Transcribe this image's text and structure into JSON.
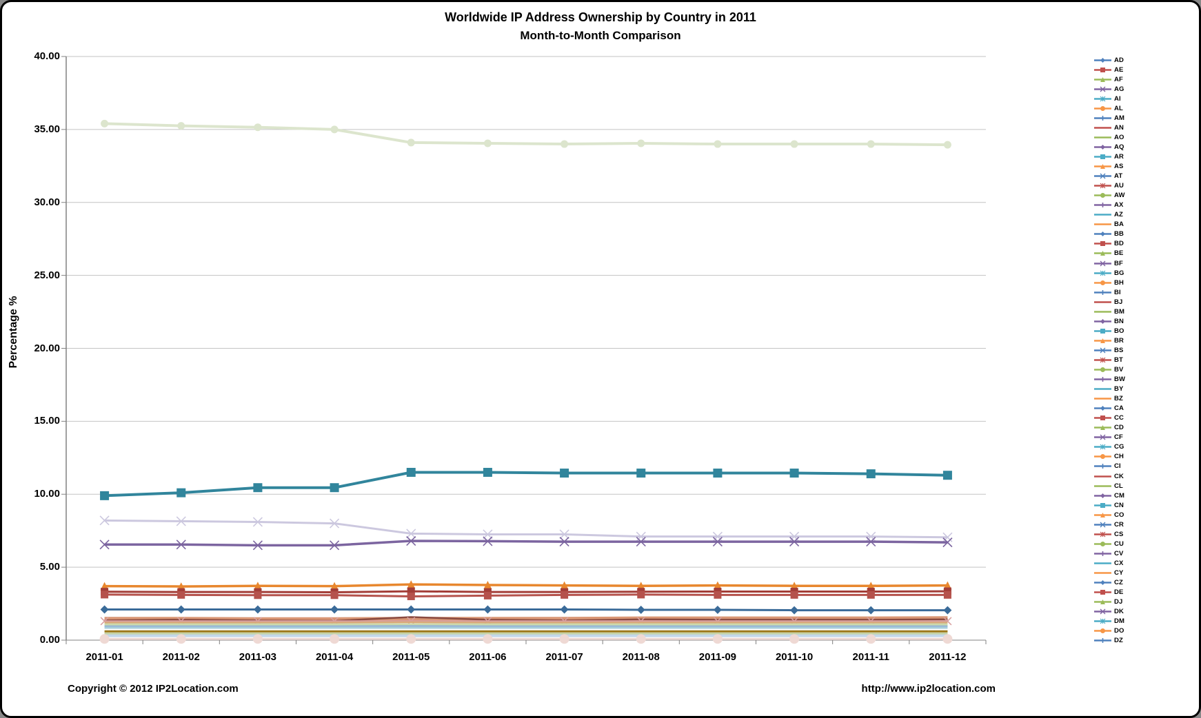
{
  "footer": {
    "copyright": "Copyright © 2012 IP2Location.com",
    "url": "http://www.ip2location.com"
  },
  "chart_data": {
    "type": "line",
    "title": "Worldwide IP Address Ownership by Country in 2011",
    "subtitle": "Month-to-Month Comparison",
    "xlabel": "",
    "ylabel": "Percentage %",
    "ylim": [
      0,
      40
    ],
    "ytick_step": 5,
    "grid": true,
    "legend_position": "right",
    "x": [
      "2011-01",
      "2011-02",
      "2011-03",
      "2011-04",
      "2011-05",
      "2011-06",
      "2011-07",
      "2011-08",
      "2011-09",
      "2011-10",
      "2011-11",
      "2011-12"
    ],
    "yticks": [
      "0.00",
      "5.00",
      "10.00",
      "15.00",
      "20.00",
      "25.00",
      "30.00",
      "35.00",
      "40.00"
    ],
    "style": {
      "grid_color": "#C3C3C3",
      "axis_color": "#808080",
      "background": "#FFFFFF"
    },
    "legend_labels": [
      "AD",
      "AE",
      "AF",
      "AG",
      "AI",
      "AL",
      "AM",
      "AN",
      "AO",
      "AQ",
      "AR",
      "AS",
      "AT",
      "AU",
      "AW",
      "AX",
      "AZ",
      "BA",
      "BB",
      "BD",
      "BE",
      "BF",
      "BG",
      "BH",
      "BI",
      "BJ",
      "BM",
      "BN",
      "BO",
      "BR",
      "BS",
      "BT",
      "BV",
      "BW",
      "BY",
      "BZ",
      "CA",
      "CC",
      "CD",
      "CF",
      "CG",
      "CH",
      "CI",
      "CK",
      "CL",
      "CM",
      "CN",
      "CO",
      "CR",
      "CS",
      "CU",
      "CV",
      "CX",
      "CY",
      "CZ",
      "DE",
      "DJ",
      "DK",
      "DM",
      "DO",
      "DZ"
    ],
    "legend_color_cycle": [
      "#4F81BD",
      "#C0504D",
      "#9BBB59",
      "#8064A2",
      "#4BACC6",
      "#F79646"
    ],
    "legend_marker_cycle": [
      "diamond",
      "square",
      "triangle",
      "x",
      "asterisk",
      "circle",
      "plus",
      "line",
      "line"
    ],
    "series": [
      {
        "name": "unlabeled-top-pale-green",
        "legend_label_visible": false,
        "color": "#DCE5CD",
        "marker": "circle",
        "marker_size": 11,
        "width": 4,
        "values": [
          35.4,
          35.25,
          35.15,
          35.0,
          34.1,
          34.05,
          34.0,
          34.05,
          34.0,
          34.0,
          34.0,
          33.95
        ]
      },
      {
        "name": "CN",
        "legend_label_visible": true,
        "color": "#31859C",
        "marker": "square",
        "marker_size": 13,
        "width": 4,
        "values": [
          9.9,
          10.1,
          10.45,
          10.45,
          11.5,
          11.5,
          11.45,
          11.45,
          11.45,
          11.45,
          11.4,
          11.3
        ]
      },
      {
        "name": "unlabeled-pale-lavender",
        "legend_label_visible": false,
        "color": "#CCC8DF",
        "marker": "x",
        "marker_size": 13,
        "width": 3,
        "values": [
          8.2,
          8.15,
          8.1,
          8.0,
          7.3,
          7.25,
          7.25,
          7.1,
          7.1,
          7.1,
          7.1,
          7.05
        ]
      },
      {
        "name": "unlabeled-purple",
        "legend_label_visible": false,
        "color": "#7C65A0",
        "marker": "x",
        "marker_size": 13,
        "width": 3.5,
        "values": [
          6.55,
          6.55,
          6.5,
          6.5,
          6.8,
          6.78,
          6.75,
          6.75,
          6.75,
          6.75,
          6.75,
          6.7
        ]
      },
      {
        "name": "unlabeled-orange",
        "legend_label_visible": false,
        "color": "#E8872E",
        "marker": "triangle",
        "marker_size": 12,
        "width": 3.5,
        "values": [
          3.7,
          3.68,
          3.72,
          3.7,
          3.82,
          3.78,
          3.75,
          3.72,
          3.75,
          3.72,
          3.72,
          3.75
        ]
      },
      {
        "name": "unlabeled-dark-red-upper",
        "legend_label_visible": false,
        "color": "#A33E38",
        "marker": "square",
        "marker_size": 11,
        "width": 3,
        "values": [
          3.32,
          3.3,
          3.3,
          3.28,
          3.35,
          3.3,
          3.3,
          3.32,
          3.33,
          3.33,
          3.33,
          3.35
        ]
      },
      {
        "name": "unlabeled-dark-red-lower",
        "legend_label_visible": false,
        "color": "#B5524C",
        "marker": "square",
        "marker_size": 11,
        "width": 3,
        "values": [
          3.12,
          3.1,
          3.08,
          3.08,
          3.0,
          3.05,
          3.1,
          3.12,
          3.1,
          3.1,
          3.1,
          3.1
        ]
      },
      {
        "name": "unlabeled-blue",
        "legend_label_visible": false,
        "color": "#3A6B99",
        "marker": "diamond",
        "marker_size": 12,
        "width": 3,
        "values": [
          2.1,
          2.1,
          2.1,
          2.1,
          2.1,
          2.1,
          2.1,
          2.08,
          2.08,
          2.05,
          2.05,
          2.05
        ]
      },
      {
        "name": "unlabeled-salmon-band",
        "legend_label_visible": false,
        "color": "#D99674",
        "marker": "none",
        "marker_size": 0,
        "width": 6,
        "values": [
          1.45,
          1.45,
          1.43,
          1.43,
          1.45,
          1.45,
          1.45,
          1.48,
          1.48,
          1.48,
          1.48,
          1.5
        ]
      },
      {
        "name": "unlabeled-maroon-spike",
        "legend_label_visible": false,
        "color": "#8A4A3F",
        "marker": "none",
        "marker_size": 0,
        "width": 2.5,
        "values": [
          1.35,
          1.4,
          1.35,
          1.32,
          1.58,
          1.4,
          1.35,
          1.42,
          1.4,
          1.4,
          1.4,
          1.42
        ]
      },
      {
        "name": "unlabeled-pink-x",
        "legend_label_visible": false,
        "color": "#D9A0A0",
        "marker": "x",
        "marker_size": 11,
        "width": 2.5,
        "values": [
          1.3,
          1.3,
          1.3,
          1.3,
          1.3,
          1.3,
          1.3,
          1.3,
          1.3,
          1.3,
          1.3,
          1.3
        ]
      },
      {
        "name": "unlabeled-tan",
        "legend_label_visible": false,
        "color": "#D8A978",
        "marker": "none",
        "marker_size": 0,
        "width": 2.5,
        "values": [
          1.2,
          1.2,
          1.2,
          1.2,
          1.22,
          1.2,
          1.2,
          1.2,
          1.2,
          1.2,
          1.2,
          1.2
        ]
      },
      {
        "name": "unlabeled-pale-green-band",
        "legend_label_visible": false,
        "color": "#CBD9AC",
        "marker": "none",
        "marker_size": 0,
        "width": 4,
        "values": [
          1.05,
          1.05,
          1.05,
          1.05,
          1.05,
          1.05,
          1.05,
          1.05,
          1.05,
          1.05,
          1.05,
          1.05
        ]
      },
      {
        "name": "unlabeled-light-blue",
        "legend_label_visible": false,
        "color": "#94B2D7",
        "marker": "none",
        "marker_size": 0,
        "width": 2.5,
        "values": [
          0.95,
          0.95,
          0.95,
          0.95,
          0.97,
          0.95,
          0.95,
          0.95,
          0.95,
          0.95,
          0.95,
          0.95
        ]
      },
      {
        "name": "unlabeled-pale-teal",
        "legend_label_visible": false,
        "color": "#A6CDDA",
        "marker": "none",
        "marker_size": 0,
        "width": 3,
        "values": [
          0.85,
          0.85,
          0.85,
          0.85,
          0.85,
          0.85,
          0.85,
          0.85,
          0.85,
          0.85,
          0.85,
          0.85
        ]
      },
      {
        "name": "unlabeled-dark-gold",
        "legend_label_visible": false,
        "color": "#9B7718",
        "marker": "none",
        "marker_size": 0,
        "width": 3,
        "values": [
          0.6,
          0.6,
          0.6,
          0.6,
          0.6,
          0.6,
          0.6,
          0.6,
          0.6,
          0.6,
          0.6,
          0.6
        ]
      },
      {
        "name": "unlabeled-olive-band",
        "legend_label_visible": false,
        "color": "#C5D3A5",
        "marker": "none",
        "marker_size": 0,
        "width": 3,
        "values": [
          0.45,
          0.45,
          0.45,
          0.45,
          0.45,
          0.45,
          0.45,
          0.45,
          0.45,
          0.45,
          0.45,
          0.45
        ]
      },
      {
        "name": "unlabeled-pale-blue-grey",
        "legend_label_visible": false,
        "color": "#C3D7EA",
        "marker": "none",
        "marker_size": 0,
        "width": 4,
        "values": [
          0.3,
          0.3,
          0.3,
          0.3,
          0.3,
          0.3,
          0.3,
          0.3,
          0.3,
          0.3,
          0.3,
          0.3
        ]
      },
      {
        "name": "unlabeled-pale-pink",
        "legend_label_visible": false,
        "color": "#EFD9D4",
        "marker": "circle",
        "marker_size": 14,
        "width": 3,
        "values": [
          0.08,
          0.08,
          0.08,
          0.08,
          0.08,
          0.08,
          0.08,
          0.08,
          0.08,
          0.08,
          0.08,
          0.08
        ]
      }
    ]
  }
}
